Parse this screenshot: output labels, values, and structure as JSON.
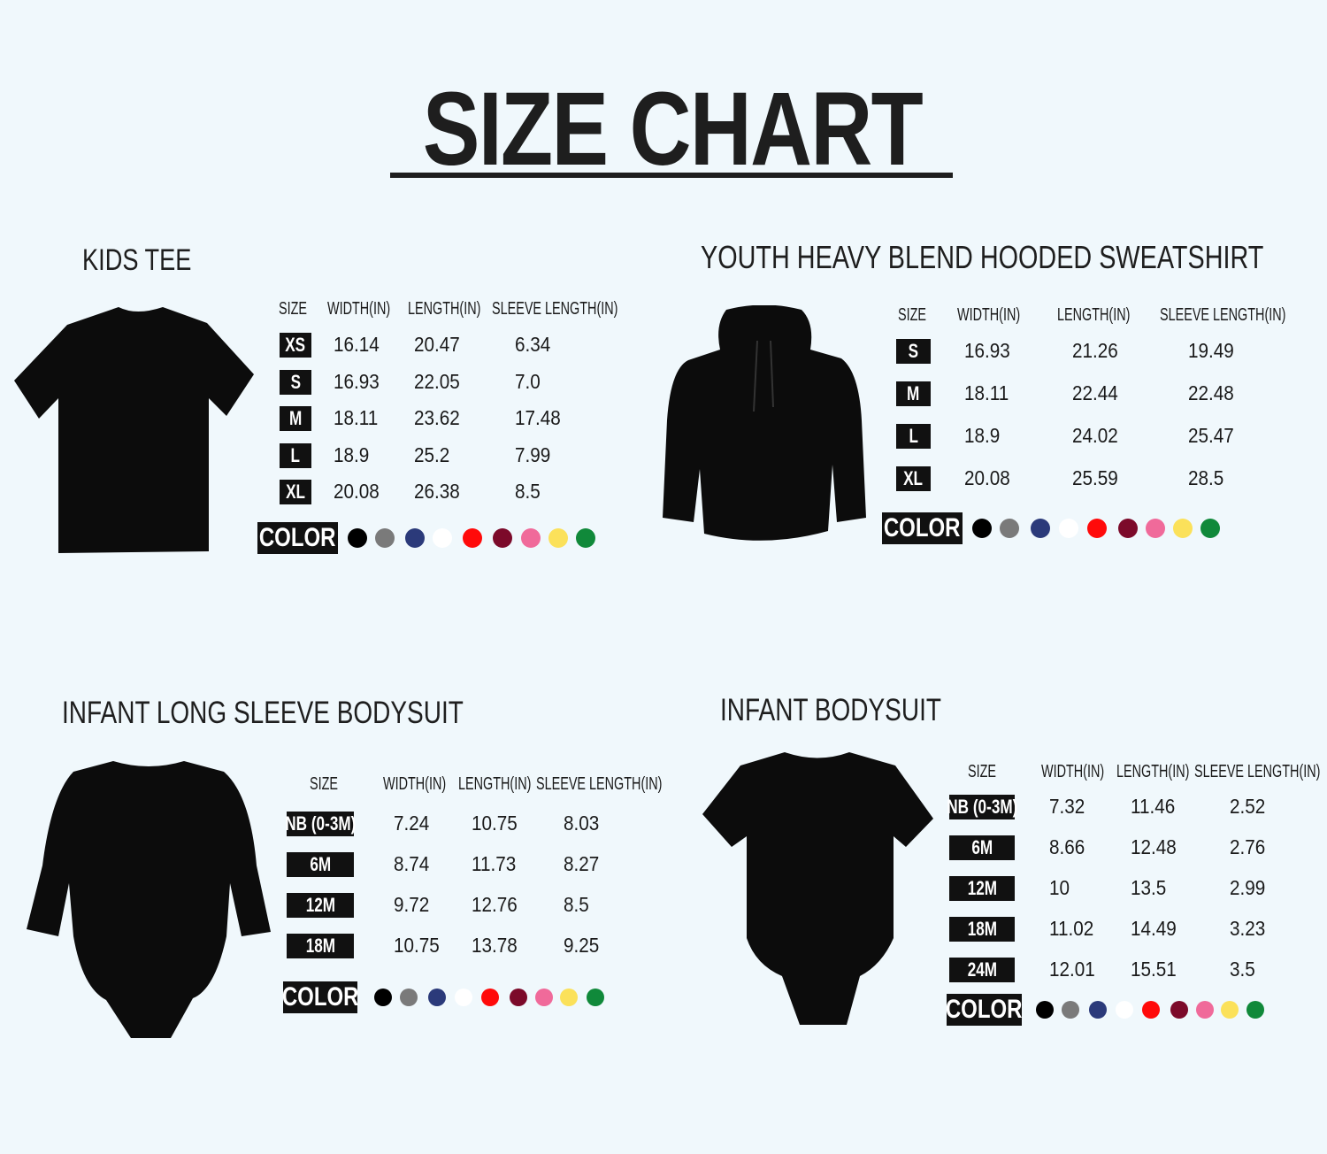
{
  "title": "SIZE CHART",
  "sections": [
    {
      "name": "KIDS TEE",
      "garment_icon": "tshirt-icon",
      "headers": [
        "SIZE",
        "WIDTH(IN)",
        "LENGTH(IN)",
        "SLEEVE LENGTH(IN)"
      ],
      "rows": [
        {
          "size": "XS",
          "width": "16.14",
          "length": "20.47",
          "sleeve": "6.34"
        },
        {
          "size": "S",
          "width": "16.93",
          "length": "22.05",
          "sleeve": "7.0"
        },
        {
          "size": "M",
          "width": "18.11",
          "length": "23.62",
          "sleeve": "17.48"
        },
        {
          "size": "L",
          "width": "18.9",
          "length": "25.2",
          "sleeve": "7.99"
        },
        {
          "size": "XL",
          "width": "20.08",
          "length": "26.38",
          "sleeve": "8.5"
        }
      ],
      "color_label": "COLOR"
    },
    {
      "name": "YOUTH HEAVY BLEND HOODED SWEATSHIRT",
      "garment_icon": "hoodie-icon",
      "headers": [
        "SIZE",
        "WIDTH(IN)",
        "LENGTH(IN)",
        "SLEEVE LENGTH(IN)"
      ],
      "rows": [
        {
          "size": "S",
          "width": "16.93",
          "length": "21.26",
          "sleeve": "19.49"
        },
        {
          "size": "M",
          "width": "18.11",
          "length": "22.44",
          "sleeve": "22.48"
        },
        {
          "size": "L",
          "width": "18.9",
          "length": "24.02",
          "sleeve": "25.47"
        },
        {
          "size": "XL",
          "width": "20.08",
          "length": "25.59",
          "sleeve": "28.5"
        }
      ],
      "color_label": "COLOR"
    },
    {
      "name": "INFANT LONG SLEEVE BODYSUIT",
      "garment_icon": "long-sleeve-bodysuit-icon",
      "headers": [
        "SIZE",
        "WIDTH(IN)",
        "LENGTH(IN)",
        "SLEEVE LENGTH(IN)"
      ],
      "rows": [
        {
          "size": "NB (0-3M)",
          "width": "7.24",
          "length": "10.75",
          "sleeve": "8.03"
        },
        {
          "size": "6M",
          "width": "8.74",
          "length": "11.73",
          "sleeve": "8.27"
        },
        {
          "size": "12M",
          "width": "9.72",
          "length": "12.76",
          "sleeve": "8.5"
        },
        {
          "size": "18M",
          "width": "10.75",
          "length": "13.78",
          "sleeve": "9.25"
        }
      ],
      "color_label": "COLOR"
    },
    {
      "name": "INFANT BODYSUIT",
      "garment_icon": "bodysuit-icon",
      "headers": [
        "SIZE",
        "WIDTH(IN)",
        "LENGTH(IN)",
        "SLEEVE LENGTH(IN)"
      ],
      "rows": [
        {
          "size": "NB (0-3M)",
          "width": "7.32",
          "length": "11.46",
          "sleeve": "2.52"
        },
        {
          "size": "6M",
          "width": "8.66",
          "length": "12.48",
          "sleeve": "2.76"
        },
        {
          "size": "12M",
          "width": "10",
          "length": "13.5",
          "sleeve": "2.99"
        },
        {
          "size": "18M",
          "width": "11.02",
          "length": "14.49",
          "sleeve": "3.23"
        },
        {
          "size": "24M",
          "width": "12.01",
          "length": "15.51",
          "sleeve": "3.5"
        }
      ],
      "color_label": "COLOR"
    }
  ],
  "swatches": [
    {
      "name": "black",
      "hex": "#000000"
    },
    {
      "name": "gray",
      "hex": "#7a7a7a"
    },
    {
      "name": "navy",
      "hex": "#2b3a7a"
    },
    {
      "name": "white",
      "hex": "#ffffff"
    },
    {
      "name": "red",
      "hex": "#ff0a0a"
    },
    {
      "name": "maroon",
      "hex": "#7c0a2a"
    },
    {
      "name": "pink",
      "hex": "#f06a9a"
    },
    {
      "name": "yellow",
      "hex": "#fbe15a"
    },
    {
      "name": "green",
      "hex": "#10893a"
    }
  ]
}
